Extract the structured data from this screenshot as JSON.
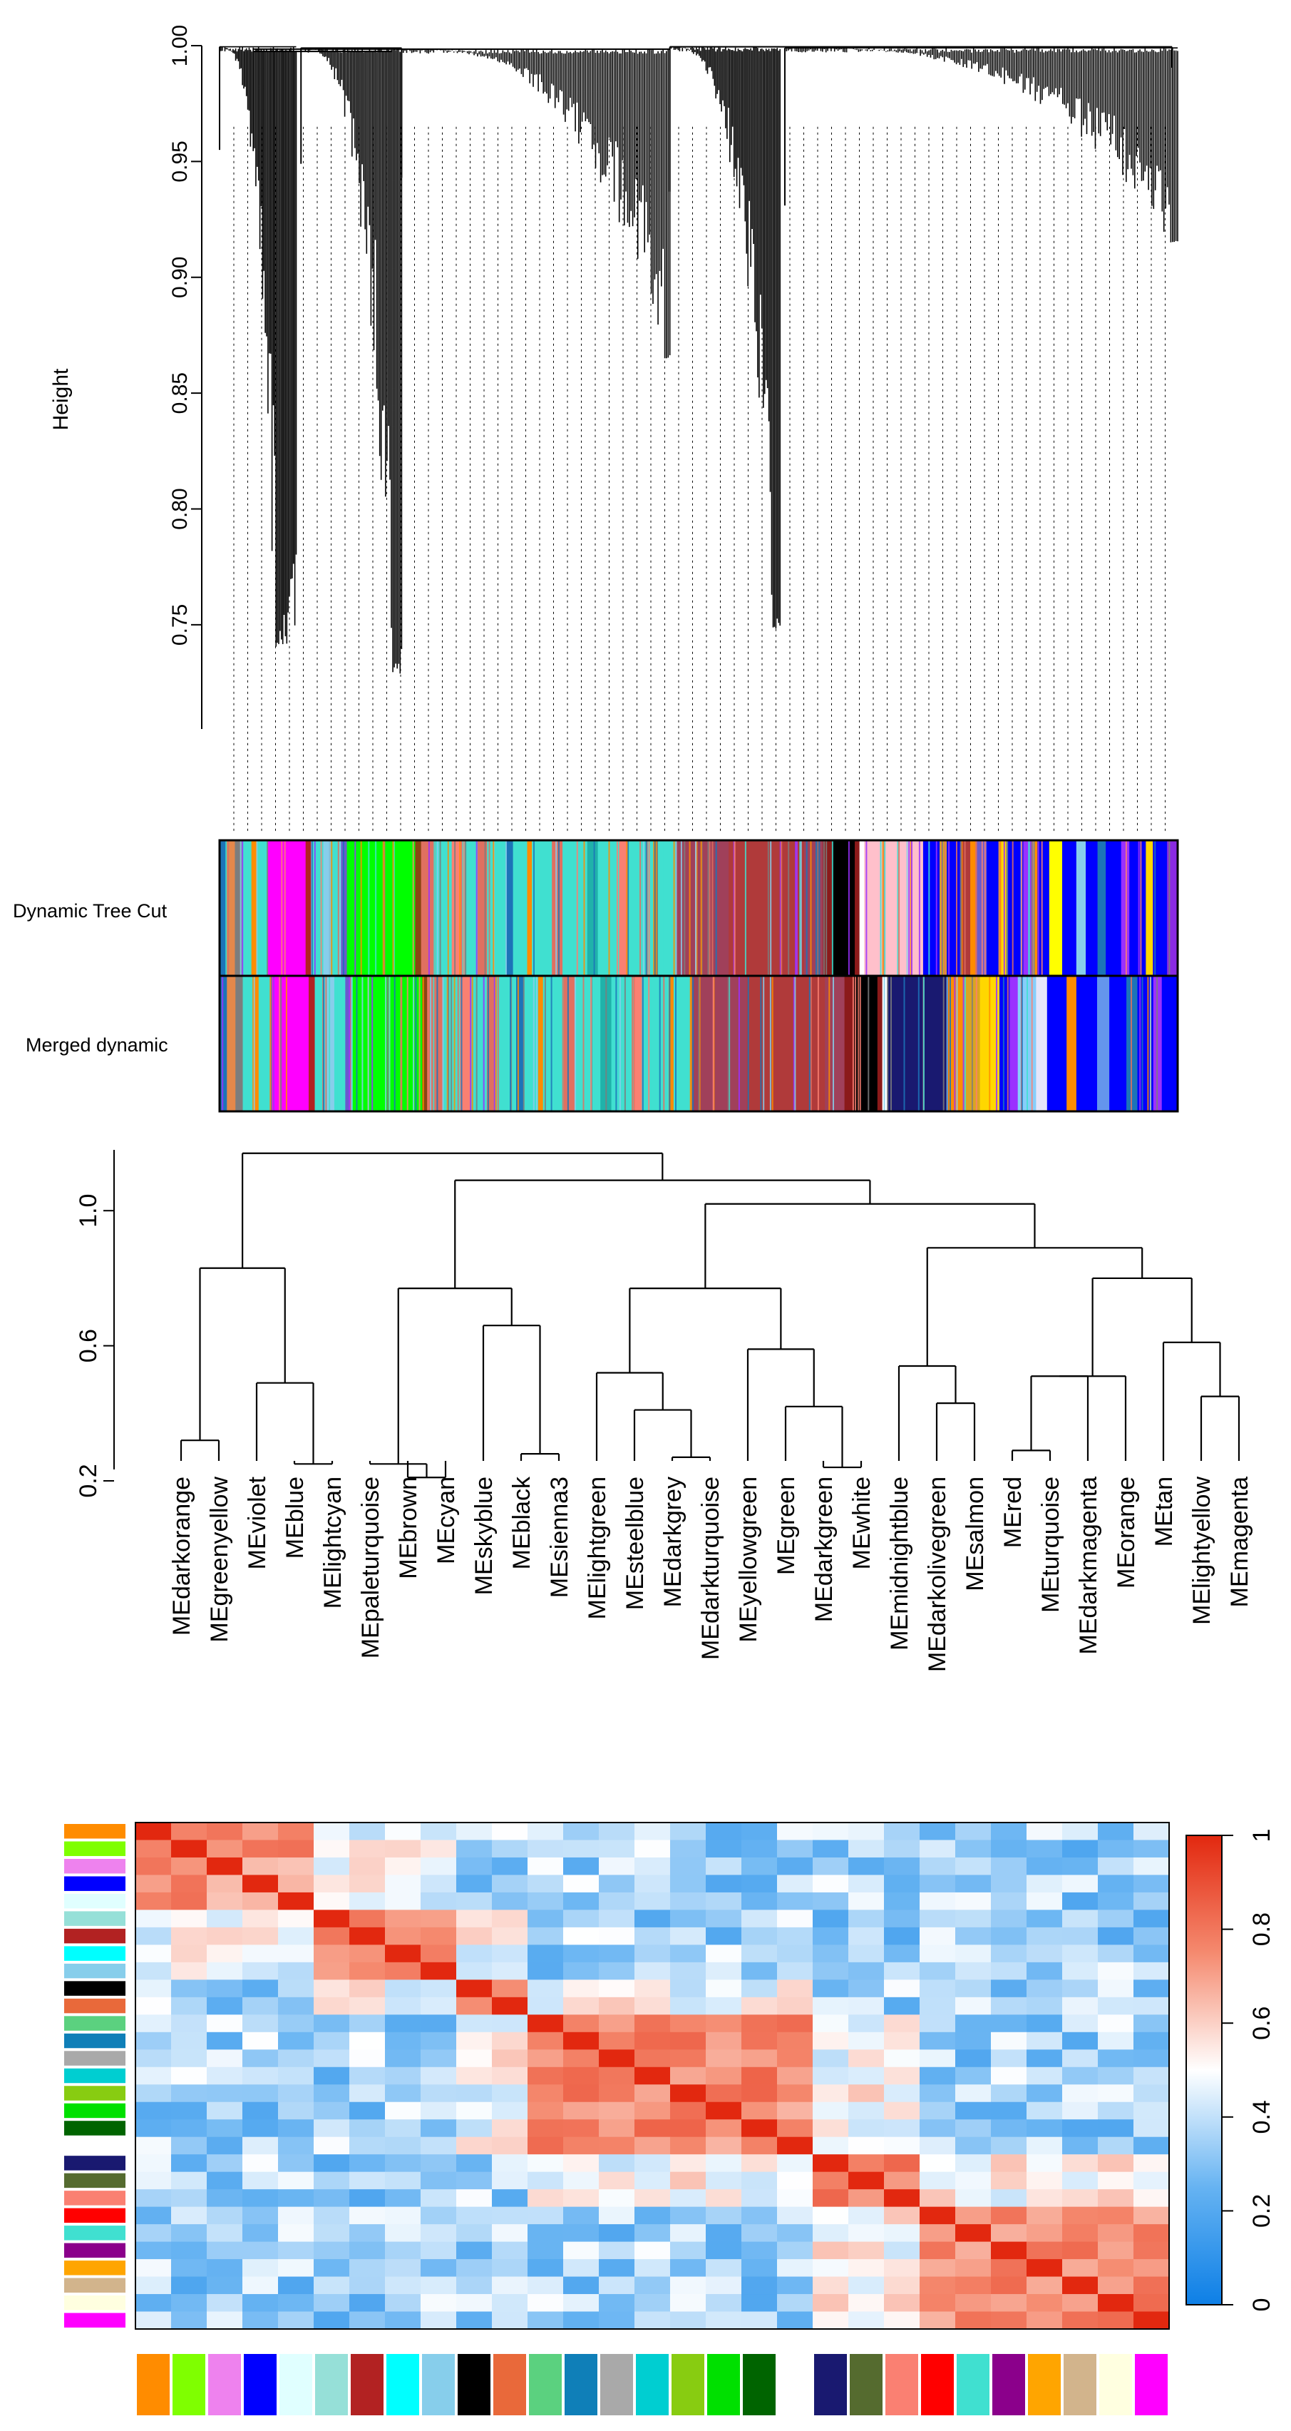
{
  "chart_data": [
    {
      "type": "dendrogram",
      "panel": "gene clustering dendrogram with module colors",
      "ylabel": "Height",
      "ylim": [
        0.705,
        1.0
      ],
      "yticks": [
        0.75,
        0.8,
        0.85,
        0.9,
        0.95,
        1.0
      ],
      "ytick_labels": [
        "0.75",
        "0.80",
        "0.85",
        "0.90",
        "0.95",
        "1.00"
      ],
      "color_rows": [
        "Dynamic Tree Cut",
        "Merged dynamic"
      ],
      "dynamic_tree_cut_segments": [
        [
          "#1c74b8",
          0.6
        ],
        [
          "#e4884b",
          0.7
        ],
        [
          "#7d7d7d",
          0.6
        ],
        [
          "#40e0d0",
          0.8
        ],
        [
          "#ff8c00",
          0.5
        ],
        [
          "#40e0d0",
          0.9
        ],
        [
          "#ff00ff",
          3.2
        ],
        [
          "#b22222",
          0.5
        ],
        [
          "#40e0d0",
          1.0
        ],
        [
          "#87ceeb",
          0.6
        ],
        [
          "#40e0d0",
          0.9
        ],
        [
          "#6a5acd",
          0.5
        ],
        [
          "#00ff00",
          5.8
        ],
        [
          "#8b4513",
          0.5
        ],
        [
          "#e07060",
          1.2
        ],
        [
          "#40e0d0",
          1.4
        ],
        [
          "#fa8072",
          0.9
        ],
        [
          "#40e0d0",
          1.3
        ],
        [
          "#e07060",
          0.8
        ],
        [
          "#40e0d0",
          1.6
        ],
        [
          "#1c74b8",
          0.6
        ],
        [
          "#40e0d0",
          1.2
        ],
        [
          "#ff8c00",
          0.4
        ],
        [
          "#40e0d0",
          1.7
        ],
        [
          "#e07060",
          0.9
        ],
        [
          "#40e0d0",
          2.1
        ],
        [
          "#20b2aa",
          0.9
        ],
        [
          "#40e0d0",
          1.8
        ],
        [
          "#fa8072",
          0.7
        ],
        [
          "#40e0d0",
          2.2
        ],
        [
          "#ff8c00",
          0.4
        ],
        [
          "#40e0d0",
          1.5
        ],
        [
          "#a0405a",
          4.5
        ],
        [
          "#b03a3a",
          6.4
        ],
        [
          "#a0405a",
          1.6
        ],
        [
          "#8b1a1a",
          0.8
        ],
        [
          "#000000",
          1.9
        ],
        [
          "#8b1a1a",
          0.4
        ],
        [
          "#ffffff",
          0.4
        ],
        [
          "#ffc0cb",
          5.0
        ],
        [
          "#0000ff",
          1.4
        ],
        [
          "#daa520",
          0.6
        ],
        [
          "#0000ff",
          1.3
        ],
        [
          "#b03a3a",
          0.7
        ],
        [
          "#ff8c00",
          0.5
        ],
        [
          "#6a5acd",
          0.9
        ],
        [
          "#0000ff",
          1.0
        ],
        [
          "#ffd700",
          0.7
        ],
        [
          "#0000ff",
          1.4
        ],
        [
          "#9b30ff",
          0.8
        ],
        [
          "#ff8c00",
          0.4
        ],
        [
          "#0000ff",
          1.0
        ],
        [
          "#ffff00",
          1.1
        ],
        [
          "#0000ff",
          1.2
        ],
        [
          "#87ceeb",
          0.8
        ],
        [
          "#0000ff",
          1.0
        ],
        [
          "#1c74b8",
          0.7
        ],
        [
          "#0000ff",
          1.3
        ],
        [
          "#9b30ff",
          0.7
        ],
        [
          "#0000ff",
          1.4
        ],
        [
          "#ffd700",
          0.6
        ],
        [
          "#0000ff",
          1.2
        ],
        [
          "#8a2be2",
          0.9
        ]
      ],
      "merged_dynamic_segments": [
        [
          "#1c74b8",
          0.6
        ],
        [
          "#e4884b",
          0.7
        ],
        [
          "#7d7d7d",
          0.6
        ],
        [
          "#40e0d0",
          0.8
        ],
        [
          "#ff8c00",
          0.5
        ],
        [
          "#40e0d0",
          0.9
        ],
        [
          "#ff00ff",
          3.2
        ],
        [
          "#b22222",
          0.5
        ],
        [
          "#40e0d0",
          1.0
        ],
        [
          "#87ceeb",
          0.6
        ],
        [
          "#40e0d0",
          0.9
        ],
        [
          "#6a5acd",
          0.5
        ],
        [
          "#00ff00",
          5.8
        ],
        [
          "#8b4513",
          0.5
        ],
        [
          "#e07060",
          1.2
        ],
        [
          "#40e0d0",
          1.4
        ],
        [
          "#fa8072",
          0.9
        ],
        [
          "#40e0d0",
          1.3
        ],
        [
          "#e07060",
          0.8
        ],
        [
          "#40e0d0",
          1.6
        ],
        [
          "#1c74b8",
          0.6
        ],
        [
          "#40e0d0",
          1.2
        ],
        [
          "#ff8c00",
          0.4
        ],
        [
          "#40e0d0",
          1.7
        ],
        [
          "#e07060",
          0.9
        ],
        [
          "#40e0d0",
          2.1
        ],
        [
          "#20b2aa",
          0.9
        ],
        [
          "#40e0d0",
          1.8
        ],
        [
          "#fa8072",
          0.7
        ],
        [
          "#40e0d0",
          2.2
        ],
        [
          "#ff8c00",
          0.4
        ],
        [
          "#40e0d0",
          1.5
        ],
        [
          "#a0405a",
          4.5
        ],
        [
          "#b03a3a",
          6.4
        ],
        [
          "#a0405a",
          1.6
        ],
        [
          "#8b1a1a",
          0.8
        ],
        [
          "#000000",
          1.9
        ],
        [
          "#8b1a1a",
          0.4
        ],
        [
          "#ffffff",
          0.4
        ],
        [
          "#191970",
          5.0
        ],
        [
          "#ff8c00",
          1.2
        ],
        [
          "#daa520",
          1.4
        ],
        [
          "#ffd700",
          1.6
        ],
        [
          "#0000ff",
          0.9
        ],
        [
          "#9b30ff",
          0.6
        ],
        [
          "#87cefa",
          1.5
        ],
        [
          "#e6e6fa",
          0.9
        ],
        [
          "#0000ff",
          1.6
        ],
        [
          "#ff8c00",
          0.8
        ],
        [
          "#0000ff",
          1.7
        ],
        [
          "#6495ed",
          1.0
        ],
        [
          "#0000ff",
          1.4
        ],
        [
          "#1c74b8",
          0.9
        ],
        [
          "#0000ff",
          1.3
        ],
        [
          "#9b30ff",
          0.7
        ],
        [
          "#0000ff",
          1.3
        ]
      ]
    },
    {
      "type": "dendrogram",
      "panel": "module eigengene dendrogram",
      "ylim": [
        0.2,
        1.18
      ],
      "yticks": [
        0.2,
        0.6,
        1.0
      ],
      "ytick_labels": [
        "0.2",
        "0.6",
        "1.0"
      ],
      "leaves": [
        "MEdarkorange",
        "MEgreenyellow",
        "MEviolet",
        "MEblue",
        "MElightcyan",
        "MEpaleturquoise",
        "MEbrown",
        "MEcyan",
        "MEskyblue",
        "MEblack",
        "MEsienna3",
        "MElightgreen",
        "MEsteelblue",
        "MEdarkgrey",
        "MEdarkturquoise",
        "MEyellowgreen",
        "MEgreen",
        "MEdarkgreen",
        "MEwhite",
        "MEmidnightblue",
        "MEdarkolivegreen",
        "MEsalmon",
        "MEred",
        "MEturquoise",
        "MEdarkmagenta",
        "MEorange",
        "MEtan",
        "MElightyellow",
        "MEmagenta"
      ],
      "merges": [
        {
          "left": 0,
          "right": 1,
          "height": 0.32
        },
        {
          "left": 3,
          "right": 4,
          "height": 0.25
        },
        {
          "left": 2,
          "right": 30,
          "height": 0.49
        },
        {
          "left": 29,
          "right": 31,
          "height": 0.83
        },
        {
          "left": 6,
          "right": 7,
          "height": 0.21
        },
        {
          "left": 5,
          "right": 33,
          "height": 0.25
        },
        {
          "left": 9,
          "right": 10,
          "height": 0.28
        },
        {
          "left": 8,
          "right": 35,
          "height": 0.66
        },
        {
          "left": 34,
          "right": 36,
          "height": 0.77
        },
        {
          "left": 13,
          "right": 14,
          "height": 0.27
        },
        {
          "left": 12,
          "right": 38,
          "height": 0.41
        },
        {
          "left": 11,
          "right": 39,
          "height": 0.52
        },
        {
          "left": 17,
          "right": 18,
          "height": 0.24
        },
        {
          "left": 16,
          "right": 41,
          "height": 0.42
        },
        {
          "left": 15,
          "right": 42,
          "height": 0.59
        },
        {
          "left": 40,
          "right": 43,
          "height": 0.77
        },
        {
          "left": 20,
          "right": 21,
          "height": 0.43
        },
        {
          "left": 19,
          "right": 45,
          "height": 0.54
        },
        {
          "left": 22,
          "right": 23,
          "height": 0.29
        },
        {
          "left": 47,
          "right": 24,
          "height": 0.51
        },
        {
          "left": 48,
          "right": 25,
          "height": 0.51
        },
        {
          "left": 27,
          "right": 28,
          "height": 0.45
        },
        {
          "left": 26,
          "right": 50,
          "height": 0.61
        },
        {
          "left": 49,
          "right": 51,
          "height": 0.8
        },
        {
          "left": 46,
          "right": 52,
          "height": 0.89
        },
        {
          "left": 44,
          "right": 53,
          "height": 1.02
        },
        {
          "left": 37,
          "right": 54,
          "height": 1.09
        },
        {
          "left": 32,
          "right": 55,
          "height": 1.17
        }
      ]
    },
    {
      "type": "heatmap",
      "panel": "eigengene adjacency heatmap",
      "clim": [
        0,
        1
      ],
      "colorbar_ticks": [
        0,
        0.2,
        0.4,
        0.6,
        0.8,
        1
      ],
      "colorbar_tick_labels": [
        "0",
        "0.2",
        "0.4",
        "0.6",
        "0.8",
        "1"
      ],
      "module_colors": [
        "#ff8c00",
        "#7fff00",
        "#ee82ee",
        "#0000ff",
        "#e0ffff",
        "#96e0d8",
        "#b22222",
        "#00ffff",
        "#87ceeb",
        "#000000",
        "#e9693a",
        "#5bd17f",
        "#0f7fb8",
        "#a9a9a9",
        "#00ced1",
        "#88cc11",
        "#00e000",
        "#006400",
        "#ffffff",
        "#191970",
        "#556b2f",
        "#fa8072",
        "#ff0000",
        "#40e0d0",
        "#8b008b",
        "#ffa500",
        "#d2b48c",
        "#ffffe0",
        "#ff00ff"
      ],
      "blocks": [
        [
          0,
          5,
          0.82
        ],
        [
          5,
          9,
          0.9
        ],
        [
          9,
          11,
          0.92
        ],
        [
          11,
          19,
          0.86
        ],
        [
          19,
          22,
          0.88
        ],
        [
          22,
          29,
          0.84
        ]
      ],
      "diagonal_value": 1.0
    }
  ]
}
